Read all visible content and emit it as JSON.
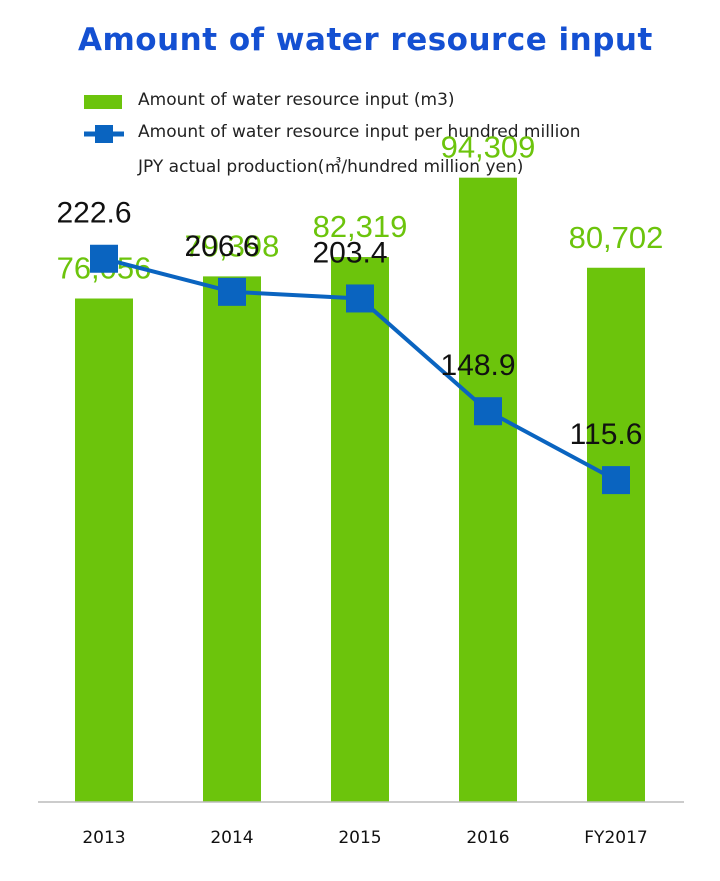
{
  "title": "Amount of water resource input",
  "legend": {
    "bar_label": "Amount of water resource input (m3)",
    "line_label_1": "Amount of water resource input per hundred million",
    "line_label_2": "JPY actual production(㎥/hundred million yen)"
  },
  "colors": {
    "title": "#1450d2",
    "bar": "#6cc40c",
    "bar_label": "#6cc40c",
    "line": "#0a64c0",
    "marker": "#0a64c0",
    "line_label": "#111111",
    "axis": "#bbbbbb"
  },
  "chart_data": {
    "type": "bar",
    "categories": [
      "2013",
      "2014",
      "2015",
      "2016",
      "FY2017"
    ],
    "series": [
      {
        "name": "Amount of water resource input (m3)",
        "type": "bar",
        "values": [
          76056,
          79398,
          82319,
          94309,
          80702
        ],
        "labels": [
          "76,056",
          "79,398",
          "82,319",
          "94,309",
          "80,702"
        ]
      },
      {
        "name": "Amount of water resource input per hundred million JPY actual production(㎥/hundred million yen)",
        "type": "line",
        "values": [
          222.6,
          206.6,
          203.4,
          148.9,
          115.6
        ],
        "labels": [
          "222.6",
          "206.6",
          "203.4",
          "148.9",
          "115.6"
        ]
      }
    ],
    "bar_ylim": [
      0,
      100000
    ],
    "line_ylim": [
      -40,
      280
    ],
    "grid": false,
    "legend_position": "top-left"
  }
}
